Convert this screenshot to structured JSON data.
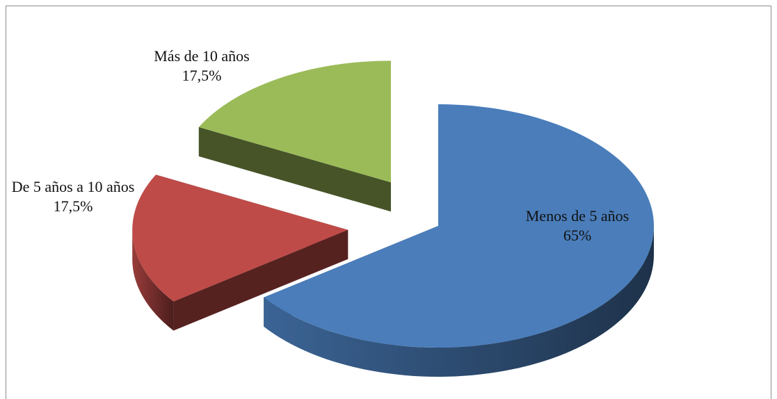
{
  "chart_data": {
    "type": "pie",
    "categories": [
      "Menos de 5 años",
      "De 5 años a 10 años",
      "Más de 10 años"
    ],
    "values": [
      65,
      17.5,
      17.5
    ],
    "value_labels": [
      "65%",
      "17,5%",
      "17,5%"
    ],
    "colors": [
      "#4a7dba",
      "#be4b48",
      "#9bbb59"
    ]
  }
}
